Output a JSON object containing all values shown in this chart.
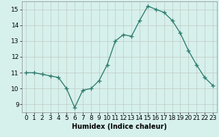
{
  "x": [
    0,
    1,
    2,
    3,
    4,
    5,
    6,
    7,
    8,
    9,
    10,
    11,
    12,
    13,
    14,
    15,
    16,
    17,
    18,
    19,
    20,
    21,
    22,
    23
  ],
  "y": [
    11.0,
    11.0,
    10.9,
    10.8,
    10.7,
    10.0,
    8.8,
    9.9,
    10.0,
    10.5,
    11.5,
    13.0,
    13.4,
    13.3,
    14.3,
    15.2,
    15.0,
    14.8,
    14.3,
    13.5,
    12.4,
    11.5,
    10.7,
    10.2
  ],
  "line_color": "#2e7d6e",
  "marker": "+",
  "marker_size": 4,
  "line_width": 1.0,
  "bg_color": "#d6f0ec",
  "grid_color": "#c0c8c0",
  "xlabel": "Humidex (Indice chaleur)",
  "xlabel_fontsize": 7,
  "xlabel_bold": true,
  "xlim": [
    -0.5,
    23.5
  ],
  "ylim": [
    8.5,
    15.5
  ],
  "xtick_labels": [
    "0",
    "1",
    "2",
    "3",
    "4",
    "5",
    "6",
    "7",
    "8",
    "9",
    "10",
    "11",
    "12",
    "13",
    "14",
    "15",
    "16",
    "17",
    "18",
    "19",
    "20",
    "21",
    "22",
    "23"
  ],
  "ytick_vals": [
    9,
    10,
    11,
    12,
    13,
    14,
    15
  ],
  "tick_fontsize": 6.5,
  "spine_color": "#888888"
}
